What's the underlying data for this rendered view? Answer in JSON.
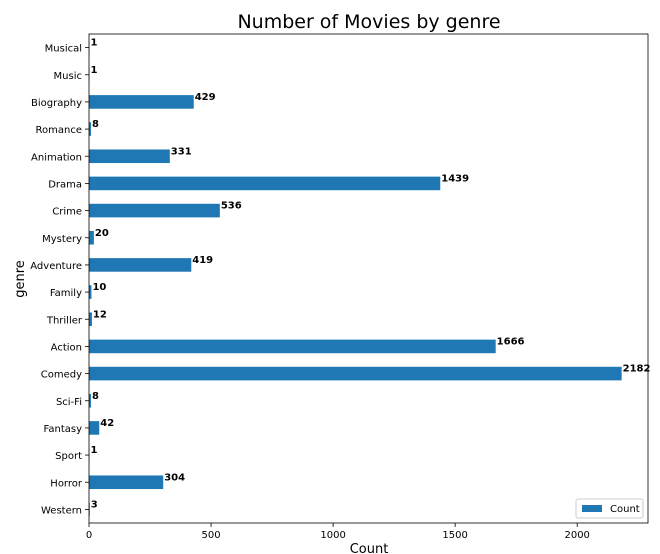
{
  "chart_data": {
    "type": "bar",
    "orientation": "horizontal",
    "title": "Number of Movies by genre",
    "xlabel": "Count",
    "ylabel": "genre",
    "xlim": [
      0,
      2290
    ],
    "xticks": [
      0,
      500,
      1000,
      1500,
      2000
    ],
    "grid": false,
    "legend_position": "bottom-right",
    "bar_color": "#1f77b4",
    "categories": [
      "Musical",
      "Music",
      "Biography",
      "Romance",
      "Animation",
      "Drama",
      "Crime",
      "Mystery",
      "Adventure",
      "Family",
      "Thriller",
      "Action",
      "Comedy",
      "Sci-Fi",
      "Fantasy",
      "Sport",
      "Horror",
      "Western"
    ],
    "series": [
      {
        "name": "Count",
        "values": [
          1,
          1,
          429,
          8,
          331,
          1439,
          536,
          20,
          419,
          10,
          12,
          1666,
          2182,
          8,
          42,
          1,
          304,
          3
        ]
      }
    ]
  }
}
